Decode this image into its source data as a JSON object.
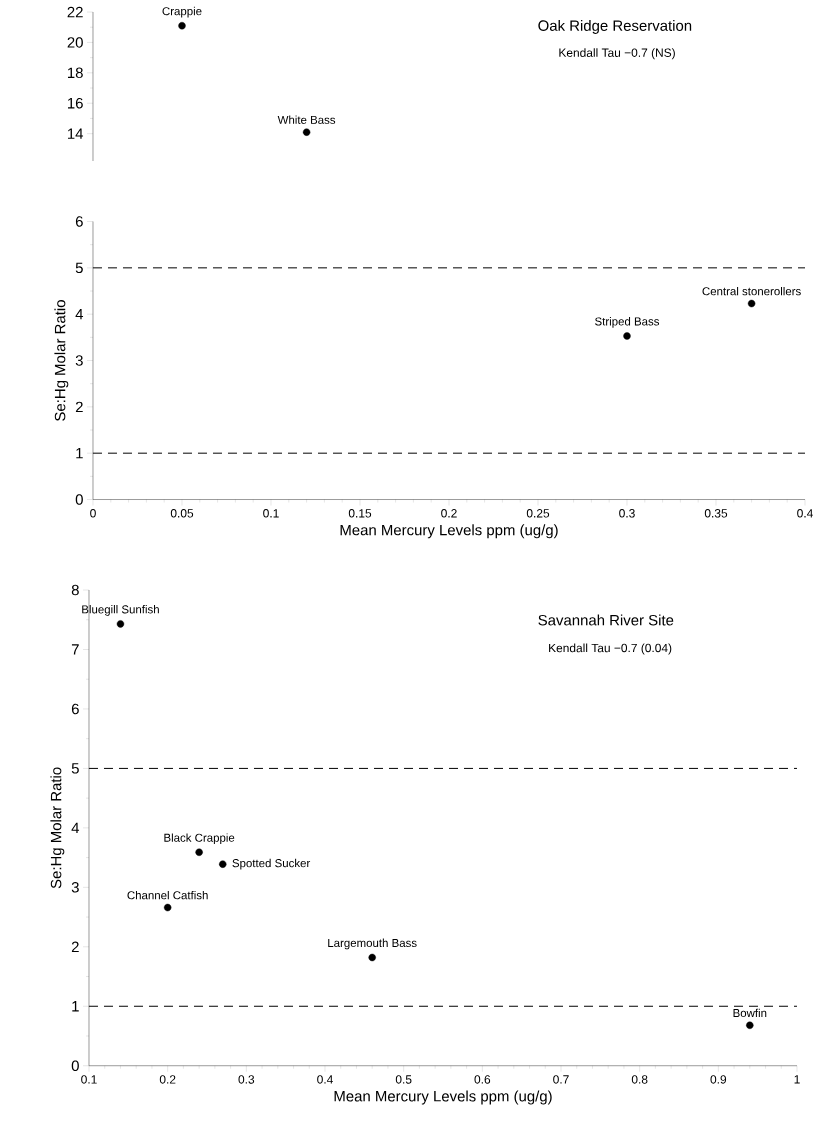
{
  "chart_data": [
    {
      "type": "scatter",
      "title": "Oak Ridge Reservation",
      "subtitle": "Kendall Tau −0.7 (NS)",
      "x": [
        0.05,
        0.12
      ],
      "series": [
        {
          "color": "#000000",
          "values": [
            21.1,
            14.1
          ]
        }
      ],
      "marker": "circle",
      "xlim": [
        0,
        0.4
      ],
      "ylim": [
        12.2,
        22
      ],
      "yticks": [
        14,
        16,
        18,
        20,
        22
      ],
      "tick_labels": "y",
      "annotations": [
        {
          "text": "Crappie",
          "x": 0.05,
          "y": 21.1
        },
        {
          "text": "White Bass",
          "x": 0.12,
          "y": 14.1
        }
      ]
    },
    {
      "type": "scatter",
      "xlabel": "Mean Mercury Levels ppm (ug/g)",
      "ylabel": "Se:Hg Molar Ratio",
      "x": [
        0.3,
        0.37
      ],
      "series": [
        {
          "color": "#000000",
          "values": [
            3.53,
            4.23
          ]
        }
      ],
      "marker": "circle",
      "xlim": [
        0,
        0.4
      ],
      "ylim": [
        0,
        6
      ],
      "xticks": [
        0,
        0.05,
        0.1,
        0.15,
        0.2,
        0.25,
        0.3,
        0.35,
        0.4
      ],
      "yticks": [
        0,
        1,
        2,
        3,
        4,
        5,
        6
      ],
      "ref_lines": [
        {
          "axis": "y",
          "value": 5,
          "line_style": "dashed"
        },
        {
          "axis": "y",
          "value": 1,
          "line_style": "dashed"
        }
      ],
      "annotations": [
        {
          "text": "Striped Bass",
          "x": 0.3,
          "y": 3.53
        },
        {
          "text": "Central stonerollers",
          "x": 0.37,
          "y": 4.23
        }
      ]
    },
    {
      "type": "scatter",
      "title": "Savannah River Site",
      "subtitle": "Kendall Tau −0.7 (0.04)",
      "xlabel": "Mean Mercury Levels ppm (ug/g)",
      "ylabel": "Se:Hg Molar Ratio",
      "x": [
        0.14,
        0.24,
        0.27,
        0.2,
        0.46,
        0.94
      ],
      "series": [
        {
          "color": "#000000",
          "values": [
            7.43,
            3.59,
            3.39,
            2.66,
            1.82,
            0.68
          ]
        }
      ],
      "marker": "circle",
      "xlim": [
        0.1,
        1
      ],
      "ylim": [
        0,
        8
      ],
      "xticks": [
        0.1,
        0.2,
        0.3,
        0.4,
        0.5,
        0.6,
        0.7,
        0.8,
        0.9,
        1
      ],
      "yticks": [
        0,
        1,
        2,
        3,
        4,
        5,
        6,
        7,
        8
      ],
      "ref_lines": [
        {
          "axis": "y",
          "value": 5,
          "line_style": "dashed"
        },
        {
          "axis": "y",
          "value": 1,
          "line_style": "dashed"
        }
      ],
      "annotations": [
        {
          "text": "Bluegill Sunfish",
          "x": 0.14,
          "y": 7.43
        },
        {
          "text": "Black Crappie",
          "x": 0.24,
          "y": 3.59
        },
        {
          "text": "Spotted Sucker",
          "x": 0.27,
          "y": 3.39
        },
        {
          "text": "Channel Catfish",
          "x": 0.2,
          "y": 2.66
        },
        {
          "text": "Largemouth Bass",
          "x": 0.46,
          "y": 1.82
        },
        {
          "text": "Bowfin",
          "x": 0.94,
          "y": 0.68
        }
      ]
    }
  ]
}
